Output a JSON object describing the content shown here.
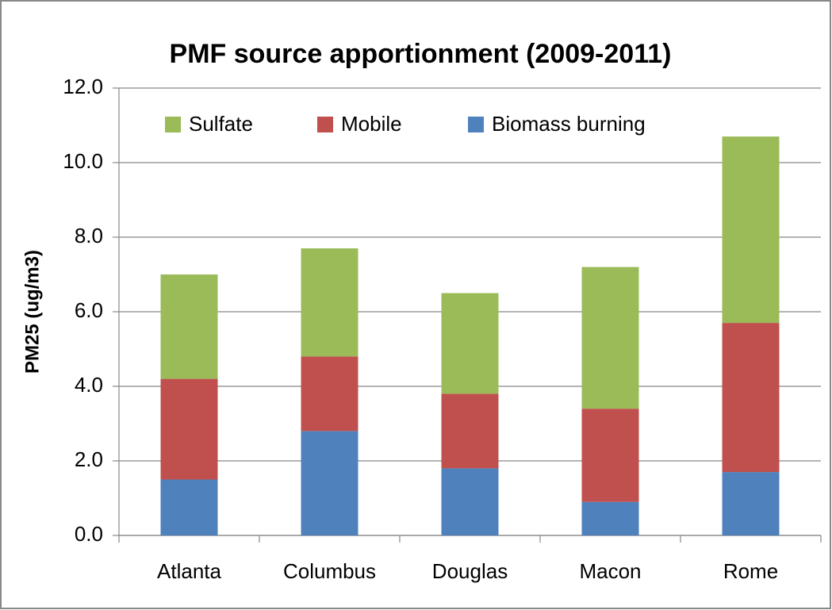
{
  "chart_data": {
    "type": "stacked_bar",
    "title": "PMF source apportionment (2009-2011)",
    "y_label": "PM25 (ug/m3)",
    "categories": [
      "Atlanta",
      "Columbus",
      "Douglas",
      "Macon",
      "Rome"
    ],
    "series": [
      {
        "name": "Biomass burning",
        "color": "#4f81bd",
        "values": [
          1.5,
          2.8,
          1.8,
          0.9,
          1.7
        ]
      },
      {
        "name": "Mobile",
        "color": "#c0504d",
        "values": [
          2.7,
          2.0,
          2.0,
          2.5,
          4.0
        ]
      },
      {
        "name": "Sulfate",
        "color": "#9bbb59",
        "values": [
          2.8,
          2.9,
          2.7,
          3.8,
          5.0
        ]
      }
    ],
    "ylim": [
      0,
      12
    ],
    "yticks": [
      {
        "value": 0,
        "label": "0.0"
      },
      {
        "value": 2,
        "label": "2.0"
      },
      {
        "value": 4,
        "label": "4.0"
      },
      {
        "value": 6,
        "label": "6.0"
      },
      {
        "value": 8,
        "label": "8.0"
      },
      {
        "value": 10,
        "label": "10.0"
      },
      {
        "value": 12,
        "label": "12.0"
      }
    ],
    "grid": true,
    "legend": "top"
  }
}
